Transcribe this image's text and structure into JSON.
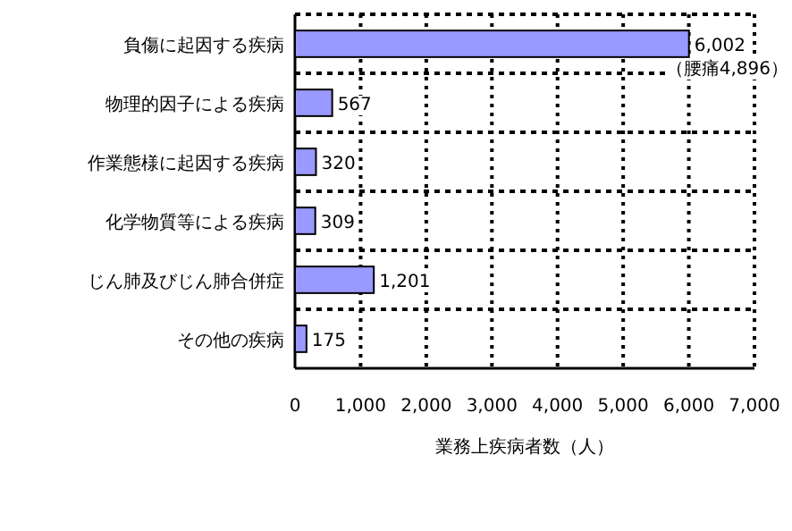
{
  "chart_data": {
    "type": "bar",
    "orientation": "horizontal",
    "xlabel": "業務上疾病者数（人）",
    "categories": [
      "負傷に起因する疾病",
      "物理的因子による疾病",
      "作業態様に起因する疾病",
      "化学物質等による疾病",
      "じん肺及びじん肺合併症",
      "その他の疾病"
    ],
    "values": [
      6002,
      567,
      320,
      309,
      1201,
      175
    ],
    "value_labels": [
      "6,002",
      "567",
      "320",
      "309",
      "1,201",
      "175"
    ],
    "color": "#9999ff",
    "annotations": [
      {
        "text": "（腰痛4,896）",
        "x": 6002,
        "y": "負傷に起因する疾病"
      }
    ],
    "xlim": [
      0,
      7000
    ],
    "xticks": [
      0,
      {
        "value": 1000,
        "label": "1,000"
      },
      {
        "value": 2000,
        "label": "2,000"
      },
      {
        "value": 3000,
        "label": "3,000"
      },
      {
        "value": 4000,
        "label": "4,000"
      },
      {
        "value": 5000,
        "label": "5,000"
      },
      {
        "value": 6000,
        "label": "6,000"
      },
      {
        "value": 7000,
        "label": "7,000"
      }
    ],
    "grid": true
  }
}
